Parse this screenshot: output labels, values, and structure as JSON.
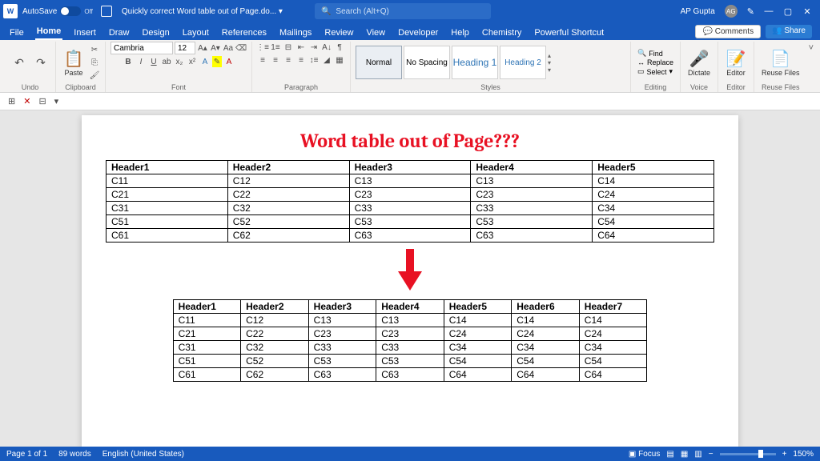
{
  "titlebar": {
    "autosave_label": "AutoSave",
    "autosave_state": "Off",
    "doc_title": "Quickly correct Word table out of Page.do... ▾",
    "search_placeholder": "Search (Alt+Q)",
    "user_name": "AP Gupta",
    "user_initials": "AG"
  },
  "tabs": {
    "items": [
      "File",
      "Home",
      "Insert",
      "Draw",
      "Design",
      "Layout",
      "References",
      "Mailings",
      "Review",
      "View",
      "Developer",
      "Help",
      "Chemistry",
      "Powerful Shortcut"
    ],
    "active": "Home",
    "comments": "Comments",
    "share": "Share"
  },
  "ribbon": {
    "undo_label": "Undo",
    "clipboard_label": "Clipboard",
    "paste": "Paste",
    "font_label": "Font",
    "font_name": "Cambria",
    "font_size": "12",
    "paragraph_label": "Paragraph",
    "styles_label": "Styles",
    "styles": [
      "Normal",
      "No Spacing",
      "Heading 1",
      "Heading 2"
    ],
    "editing_label": "Editing",
    "find": "Find",
    "replace": "Replace",
    "select": "Select",
    "dictate": "Dictate",
    "voice_label": "Voice",
    "editor": "Editor",
    "editor_label": "Editor",
    "reuse": "Reuse Files",
    "reuse_label": "Reuse Files"
  },
  "document": {
    "heading": "Word table out of Page???",
    "arrow_color": "#e81123",
    "table1": {
      "headers": [
        "Header1",
        "Header2",
        "Header3",
        "Header4",
        "Header5"
      ],
      "rows": [
        [
          "C11",
          "C12",
          "C13",
          "C13",
          "C14"
        ],
        [
          "C21",
          "C22",
          "C23",
          "C23",
          "C24"
        ],
        [
          "C31",
          "C32",
          "C33",
          "C33",
          "C34"
        ],
        [
          "C51",
          "C52",
          "C53",
          "C53",
          "C54"
        ],
        [
          "C61",
          "C62",
          "C63",
          "C63",
          "C64"
        ]
      ]
    },
    "table2": {
      "headers": [
        "Header1",
        "Header2",
        "Header3",
        "Header4",
        "Header5",
        "Header6",
        "Header7"
      ],
      "rows": [
        [
          "C11",
          "C12",
          "C13",
          "C13",
          "C14",
          "C14",
          "C14"
        ],
        [
          "C21",
          "C22",
          "C23",
          "C23",
          "C24",
          "C24",
          "C24"
        ],
        [
          "C31",
          "C32",
          "C33",
          "C33",
          "C34",
          "C34",
          "C34"
        ],
        [
          "C51",
          "C52",
          "C53",
          "C53",
          "C54",
          "C54",
          "C54"
        ],
        [
          "C61",
          "C62",
          "C63",
          "C63",
          "C64",
          "C64",
          "C64"
        ]
      ]
    }
  },
  "statusbar": {
    "page": "Page 1 of 1",
    "words": "89 words",
    "lang": "English (United States)",
    "focus": "Focus",
    "zoom": "150%"
  }
}
